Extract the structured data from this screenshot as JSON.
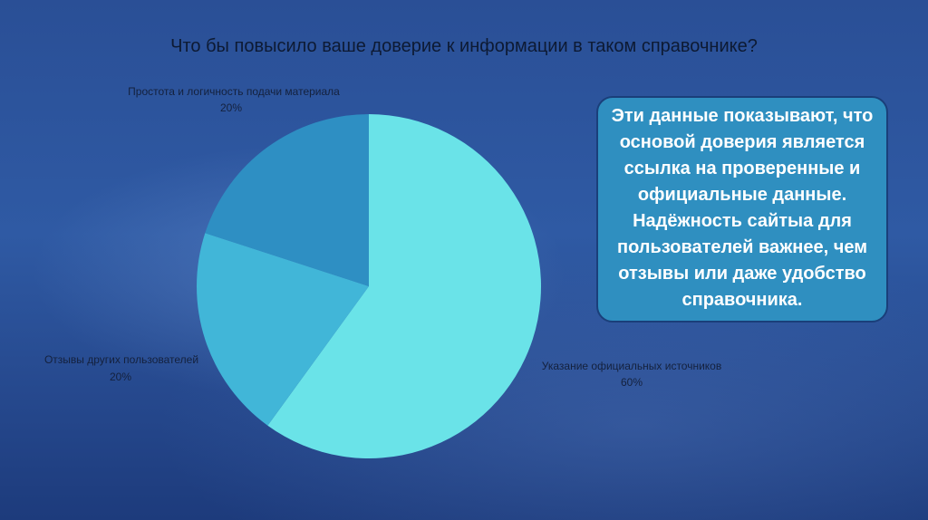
{
  "slide": {
    "title": "Что бы повысило ваше доверие к информации в таком справочнике?",
    "callout": "Эти данные показывают, что основой доверия является ссылка на проверенные и официальные данные. Надёжность сайтыа для пользователей важнее, чем отзывы или даже удобство справочника."
  },
  "chart_data": {
    "type": "pie",
    "slices": [
      {
        "label": "Указание официальных источников",
        "value": 60,
        "value_label": "60%",
        "color": "#6ae3e8"
      },
      {
        "label": "Отзывы других пользователей",
        "value": 20,
        "value_label": "20%",
        "color": "#41b6d8"
      },
      {
        "label": "Простота и логичность подачи материала",
        "value": 20,
        "value_label": "20%",
        "color": "#2e8fc3"
      }
    ]
  }
}
